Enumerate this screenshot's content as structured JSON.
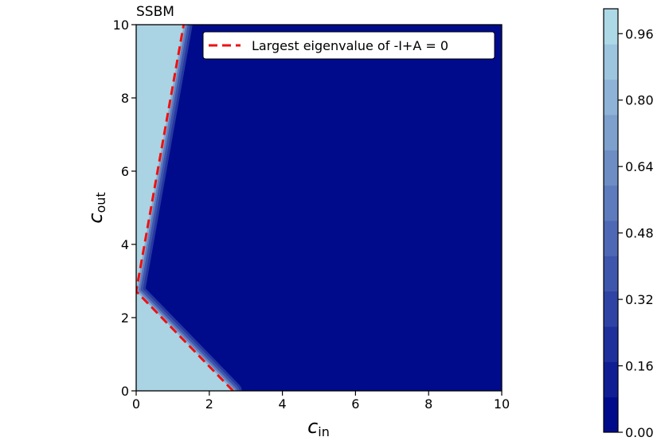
{
  "chart_data": {
    "type": "heatmap",
    "title": "SSBM",
    "xlabel_main": "c",
    "xlabel_sub": "in",
    "ylabel_main": "c",
    "ylabel_sub": "out",
    "xlim": [
      0,
      10
    ],
    "ylim": [
      0,
      10
    ],
    "xticks": [
      "0",
      "2",
      "4",
      "6",
      "8",
      "10"
    ],
    "yticks": [
      "0",
      "2",
      "4",
      "6",
      "8",
      "10"
    ],
    "grid": false,
    "legend": {
      "placement": "top-right",
      "entries": [
        {
          "label": "Largest eigenvalue of -I+A = 0",
          "color": "#ee1111",
          "style": "dashed"
        }
      ]
    },
    "boundary_line": {
      "points": [
        [
          2.65,
          0
        ],
        [
          0,
          2.72
        ],
        [
          1.3,
          10
        ]
      ]
    },
    "region_values": {
      "inside": 1.0,
      "outside": 0.0
    },
    "colorbar": {
      "range": [
        0,
        1.02
      ],
      "ticks": [
        "0.00",
        "0.16",
        "0.32",
        "0.48",
        "0.64",
        "0.80",
        "0.96"
      ],
      "tick_values": [
        0.0,
        0.16,
        0.32,
        0.48,
        0.64,
        0.8,
        0.96
      ],
      "color_low": "#000b8c",
      "color_high": "#add8e6",
      "levels": 12
    }
  }
}
